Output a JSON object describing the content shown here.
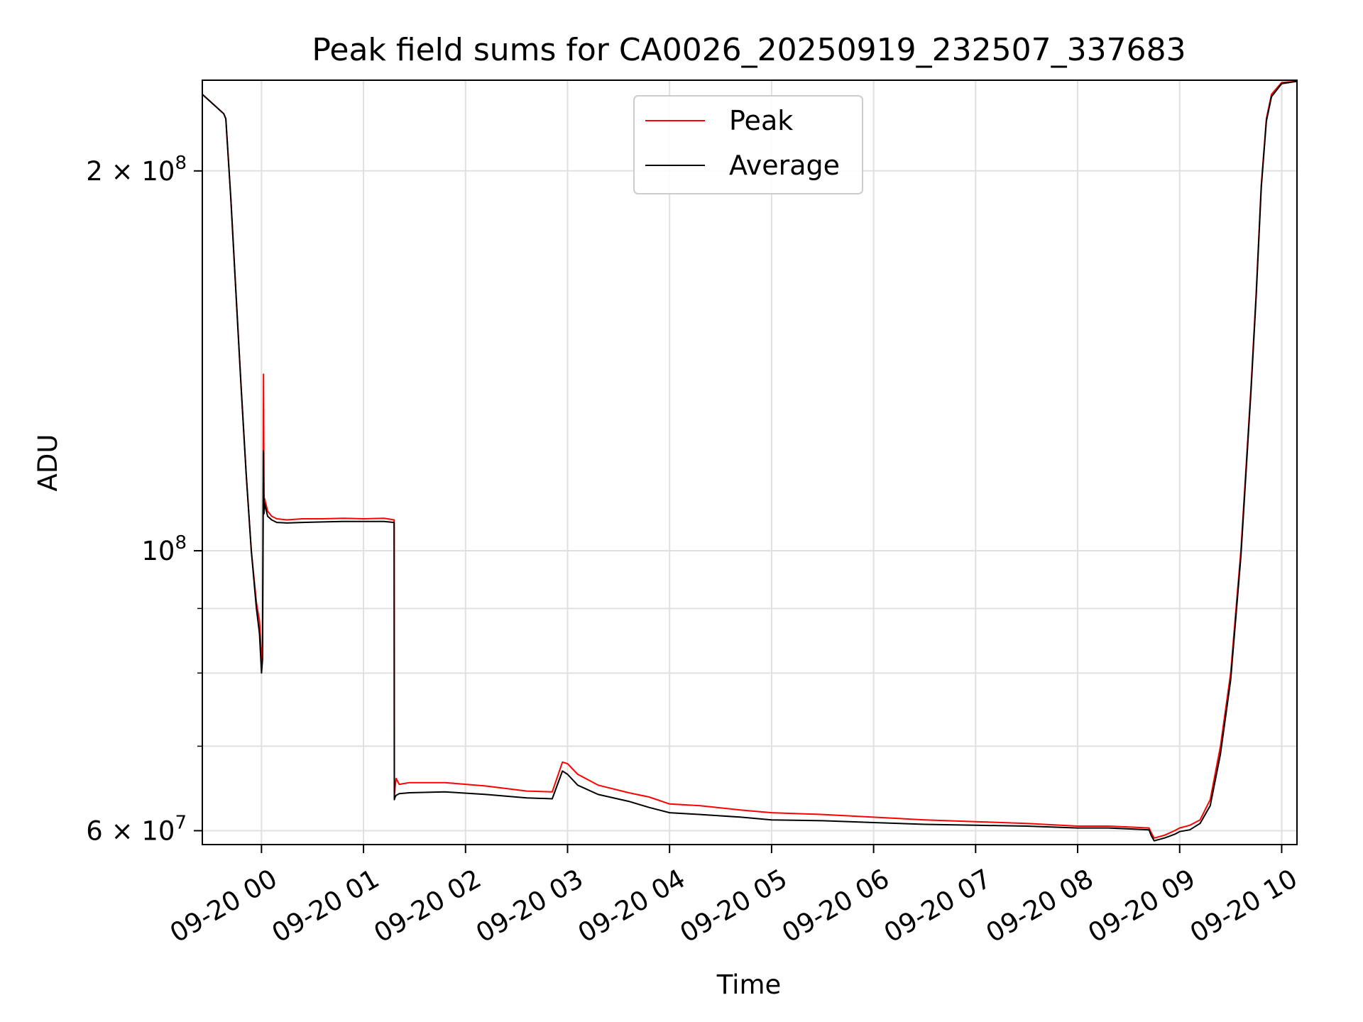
{
  "chart_data": {
    "type": "line",
    "title": "Peak field sums for CA0026_20250919_232507_337683",
    "xlabel": "Time",
    "ylabel": "ADU",
    "yscale": "log",
    "xlim": [
      -0.58,
      10.15
    ],
    "ylim": [
      58500000,
      236000000
    ],
    "x_ticks": [
      {
        "hour": 0,
        "label": "09-20 00"
      },
      {
        "hour": 1,
        "label": "09-20 01"
      },
      {
        "hour": 2,
        "label": "09-20 02"
      },
      {
        "hour": 3,
        "label": "09-20 03"
      },
      {
        "hour": 4,
        "label": "09-20 04"
      },
      {
        "hour": 5,
        "label": "09-20 05"
      },
      {
        "hour": 6,
        "label": "09-20 06"
      },
      {
        "hour": 7,
        "label": "09-20 07"
      },
      {
        "hour": 8,
        "label": "09-20 08"
      },
      {
        "hour": 9,
        "label": "09-20 09"
      },
      {
        "hour": 10,
        "label": "09-20 10"
      }
    ],
    "y_major_ticks": [
      {
        "value": 60000000,
        "mantissa": "6",
        "exponent": "7"
      },
      {
        "value": 100000000,
        "mantissa": "",
        "exponent": "8"
      },
      {
        "value": 200000000,
        "mantissa": "2",
        "exponent": "8"
      }
    ],
    "y_minor_ticks": [
      70000000,
      80000000,
      90000000
    ],
    "grid": true,
    "legend": {
      "position": "top-center",
      "entries": [
        {
          "label": "Peak",
          "color": "#ff0000"
        },
        {
          "label": "Average",
          "color": "#000000"
        }
      ]
    },
    "series": [
      {
        "name": "Peak",
        "color": "#ff0000",
        "x": [
          -0.58,
          -0.37,
          -0.35,
          -0.3,
          -0.25,
          -0.2,
          -0.15,
          -0.1,
          -0.05,
          -0.02,
          0.0,
          0.01,
          0.02,
          0.025,
          0.03,
          0.06,
          0.1,
          0.15,
          0.25,
          0.4,
          0.6,
          0.8,
          1.0,
          1.2,
          1.3,
          1.302,
          1.31,
          1.32,
          1.35,
          1.45,
          1.8,
          2.2,
          2.6,
          2.85,
          2.95,
          3.0,
          3.1,
          3.3,
          3.6,
          3.8,
          4.0,
          4.3,
          4.7,
          5.0,
          5.5,
          6.0,
          6.5,
          7.0,
          7.5,
          8.0,
          8.3,
          8.5,
          8.7,
          8.72,
          8.75,
          8.85,
          8.95,
          9.0,
          9.1,
          9.2,
          9.3,
          9.4,
          9.5,
          9.6,
          9.7,
          9.75,
          9.8,
          9.85,
          9.9,
          10.0,
          10.15
        ],
        "y": [
          230000000,
          222000000,
          220000000,
          190000000,
          160000000,
          135000000,
          115000000,
          100000000,
          91000000,
          88000000,
          82000000,
          84000000,
          138000000,
          108000000,
          110000000,
          107500000,
          106500000,
          106000000,
          105800000,
          106000000,
          106000000,
          106100000,
          106000000,
          106100000,
          105800000,
          64000000,
          65000000,
          66000000,
          65300000,
          65500000,
          65500000,
          65100000,
          64500000,
          64400000,
          68000000,
          67800000,
          66500000,
          65200000,
          64300000,
          63800000,
          63000000,
          62800000,
          62300000,
          62000000,
          61800000,
          61500000,
          61200000,
          61000000,
          60800000,
          60500000,
          60500000,
          60400000,
          60300000,
          59800000,
          59200000,
          59500000,
          60000000,
          60300000,
          60600000,
          61200000,
          63500000,
          70000000,
          80000000,
          100000000,
          135000000,
          160000000,
          195000000,
          220000000,
          230000000,
          235000000,
          235500000
        ]
      },
      {
        "name": "Average",
        "color": "#000000",
        "x": [
          -0.58,
          -0.37,
          -0.35,
          -0.3,
          -0.25,
          -0.2,
          -0.15,
          -0.1,
          -0.05,
          -0.02,
          0.0,
          0.01,
          0.02,
          0.025,
          0.03,
          0.06,
          0.1,
          0.15,
          0.25,
          0.4,
          0.6,
          0.8,
          1.0,
          1.2,
          1.3,
          1.302,
          1.31,
          1.32,
          1.35,
          1.45,
          1.8,
          2.2,
          2.6,
          2.85,
          2.95,
          3.0,
          3.1,
          3.3,
          3.6,
          3.8,
          4.0,
          4.3,
          4.7,
          5.0,
          5.5,
          6.0,
          6.5,
          7.0,
          7.5,
          8.0,
          8.3,
          8.5,
          8.7,
          8.72,
          8.75,
          8.85,
          8.95,
          9.0,
          9.1,
          9.2,
          9.3,
          9.4,
          9.5,
          9.6,
          9.7,
          9.75,
          9.8,
          9.85,
          9.9,
          10.0,
          10.15
        ],
        "y": [
          230000000,
          222000000,
          220000000,
          190000000,
          160000000,
          135000000,
          115000000,
          100000000,
          90000000,
          86000000,
          80000000,
          82000000,
          120000000,
          107000000,
          109000000,
          106500000,
          105800000,
          105300000,
          105200000,
          105300000,
          105400000,
          105500000,
          105500000,
          105500000,
          105300000,
          63500000,
          63800000,
          64000000,
          64200000,
          64300000,
          64400000,
          64100000,
          63700000,
          63600000,
          66900000,
          66500000,
          65200000,
          64100000,
          63300000,
          62600000,
          62000000,
          61800000,
          61500000,
          61200000,
          61100000,
          60900000,
          60700000,
          60600000,
          60500000,
          60300000,
          60300000,
          60200000,
          60100000,
          59500000,
          58900000,
          59200000,
          59600000,
          59900000,
          60100000,
          60800000,
          62800000,
          69000000,
          79000000,
          99000000,
          134000000,
          159000000,
          194000000,
          219000000,
          229000000,
          234500000,
          235500000
        ]
      }
    ]
  }
}
